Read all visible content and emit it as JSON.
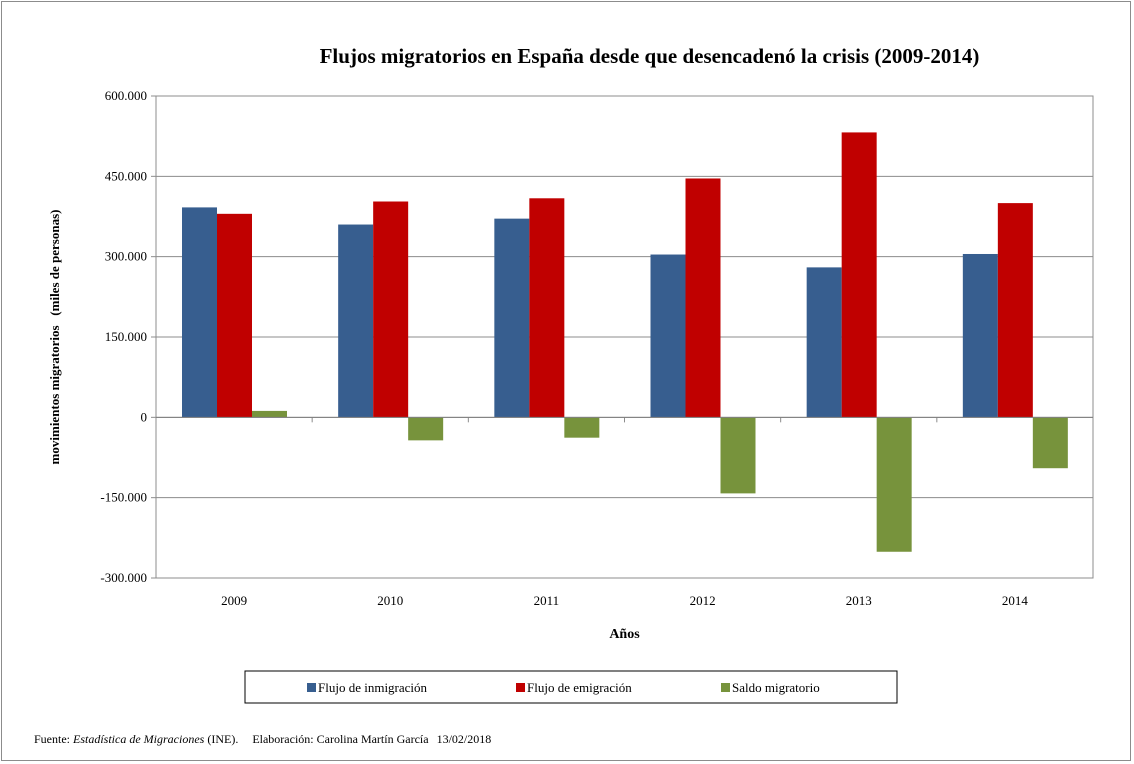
{
  "chart_data": {
    "type": "bar",
    "title": "Flujos migratorios en España desde que desencadenó la crisis (2009-2014)",
    "xlabel": "Años",
    "ylabel": "movimientos migratorios   (miles de personas)",
    "categories": [
      "2009",
      "2010",
      "2011",
      "2012",
      "2013",
      "2014"
    ],
    "ylim": [
      -300000,
      600000
    ],
    "yticks": [
      600000,
      450000,
      300000,
      150000,
      0,
      -150000,
      -300000
    ],
    "ytick_labels": [
      "600.000",
      "450.000",
      "300.000",
      "150.000",
      "0",
      "-150.000",
      "-300.000"
    ],
    "grid": true,
    "legend_position": "bottom",
    "series": [
      {
        "name": "Flujo de inmigración",
        "color": "#375E8F",
        "values": [
          392000,
          360000,
          371000,
          304000,
          280000,
          305000
        ]
      },
      {
        "name": "Flujo de emigración",
        "color": "#C00000",
        "values": [
          380000,
          403000,
          409000,
          446000,
          532000,
          400000
        ]
      },
      {
        "name": "Saldo migratorio",
        "color": "#77933C",
        "values": [
          12000,
          -43000,
          -38000,
          -142000,
          -251000,
          -95000
        ]
      }
    ]
  },
  "footer": {
    "source_prefix": "Fuente: ",
    "source_title": "Estadística de Migraciones",
    "source_suffix": " (INE).",
    "author": "Elaboración: Carolina Martín García",
    "date": "13/02/2018"
  }
}
